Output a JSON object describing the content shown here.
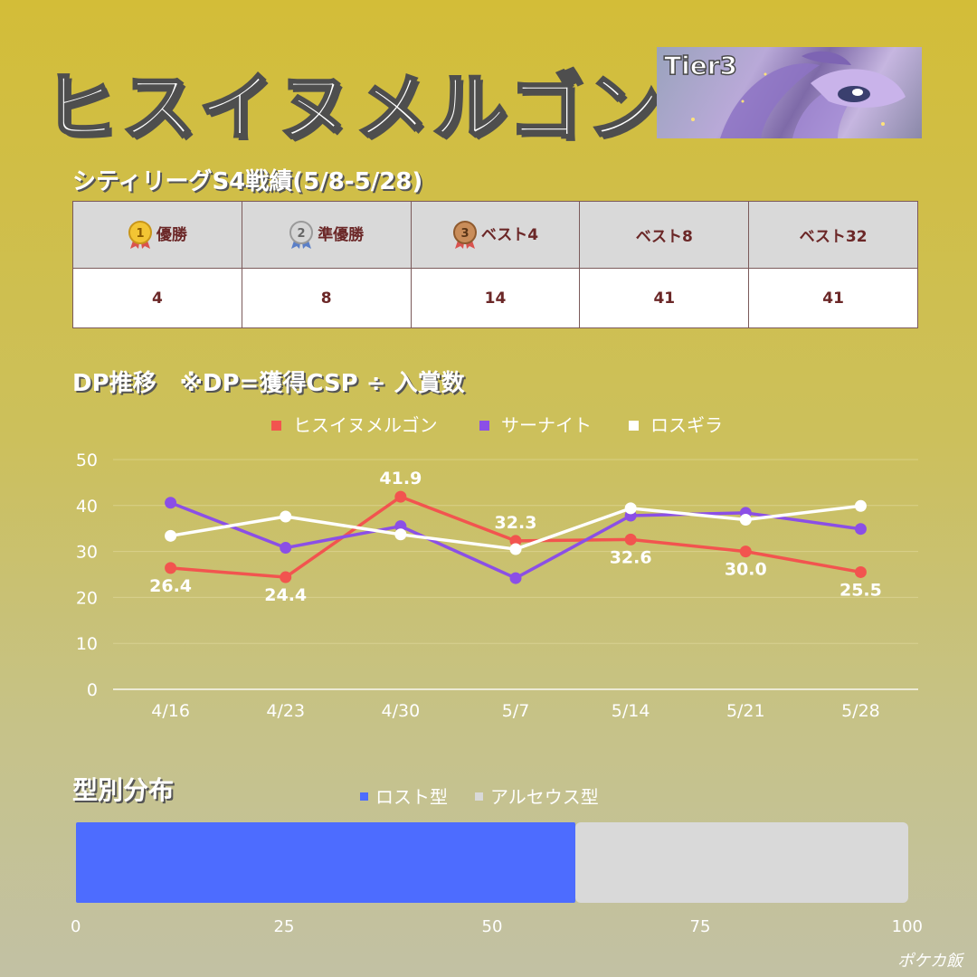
{
  "page": {
    "title": "ヒスイヌメルゴン",
    "tier": "Tier3",
    "watermark": "ポケカ飯"
  },
  "results": {
    "title": "シティリーグS4戦績(5/8-5/28)",
    "headers": [
      "優勝",
      "準優勝",
      "ベスト4",
      "ベスト8",
      "ベスト32"
    ],
    "values": [
      "4",
      "8",
      "14",
      "41",
      "41"
    ]
  },
  "chart_data": [
    {
      "type": "line",
      "title": "DP推移　※DP=獲得CSP ÷ 入賞数",
      "categories": [
        "4/16",
        "4/23",
        "4/30",
        "5/7",
        "5/14",
        "5/21",
        "5/28"
      ],
      "yticks": [
        "0",
        "10",
        "20",
        "30",
        "40",
        "50"
      ],
      "ylim": [
        0,
        50
      ],
      "grid": true,
      "legend_position": "top",
      "series": [
        {
          "name": "ヒスイヌメルゴン",
          "color": "#f2544f",
          "values": [
            26.4,
            24.4,
            41.9,
            32.3,
            32.6,
            30.0,
            25.5
          ],
          "labels": [
            "26.4",
            "24.4",
            "41.9",
            "32.3",
            "32.6",
            "30.0",
            "25.5"
          ]
        },
        {
          "name": "サーナイト",
          "color": "#8b4fe6",
          "values": [
            40.6,
            30.8,
            35.5,
            24.2,
            37.8,
            38.4,
            34.9
          ]
        },
        {
          "name": "ロスギラ",
          "color": "#ffffff",
          "values": [
            33.4,
            37.6,
            33.7,
            30.5,
            39.4,
            36.9,
            39.9
          ]
        }
      ]
    },
    {
      "type": "bar",
      "orientation": "horizontal",
      "stacked": true,
      "title": "型別分布",
      "xticks": [
        "0",
        "25",
        "50",
        "75",
        "100"
      ],
      "xlim": [
        0,
        100
      ],
      "legend_position": "top",
      "series": [
        {
          "name": "ロスト型",
          "color": "#4d6cff",
          "values": [
            60
          ]
        },
        {
          "name": "アルセウス型",
          "color": "#d9d9d9",
          "values": [
            40
          ]
        }
      ]
    }
  ]
}
